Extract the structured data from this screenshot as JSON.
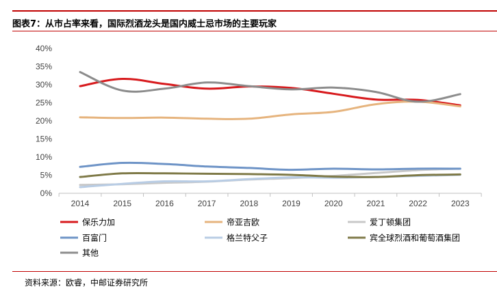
{
  "title": "图表7：从市占率来看，国际烈酒龙头是国内威士忌市场的主要玩家",
  "source": "资料来源：欧睿，中邮证券研究所",
  "chart_data": {
    "type": "line",
    "x": [
      "2014",
      "2015",
      "2016",
      "2017",
      "2018",
      "2019",
      "2020",
      "2021",
      "2022",
      "2023"
    ],
    "ylim": [
      0,
      40
    ],
    "yticks": [
      "0%",
      "5%",
      "10%",
      "15%",
      "20%",
      "25%",
      "30%",
      "35%",
      "40%"
    ],
    "ytick_values": [
      0,
      5,
      10,
      15,
      20,
      25,
      30,
      35,
      40
    ],
    "grid": false,
    "legend_position": "bottom",
    "series": [
      {
        "name": "保乐力加",
        "color": "#d7191c",
        "values": [
          29.6,
          31.6,
          30.2,
          28.9,
          29.5,
          29.1,
          27.5,
          25.9,
          25.8,
          24.3
        ]
      },
      {
        "name": "帝亚吉欧",
        "color": "#e6b47e",
        "values": [
          21.0,
          20.8,
          20.9,
          20.6,
          20.6,
          21.8,
          22.5,
          24.6,
          25.3,
          24.0
        ]
      },
      {
        "name": "爱丁顿集团",
        "color": "#c8c8c8",
        "values": [
          2.3,
          2.5,
          2.9,
          3.2,
          3.8,
          4.2,
          4.8,
          5.6,
          6.4,
          6.8
        ]
      },
      {
        "name": "百富门",
        "color": "#6d93c6",
        "values": [
          7.3,
          8.4,
          8.1,
          7.4,
          7.0,
          6.5,
          6.8,
          6.6,
          6.8,
          6.8
        ]
      },
      {
        "name": "格兰特父子",
        "color": "#b8cce4",
        "values": [
          1.7,
          2.6,
          3.3,
          3.3,
          3.9,
          4.4,
          4.3,
          4.5,
          4.8,
          5.1
        ]
      },
      {
        "name": "宾全球烈酒和葡萄酒集团",
        "color": "#7f7a48",
        "values": [
          4.5,
          5.5,
          5.5,
          5.4,
          5.3,
          5.1,
          4.6,
          4.5,
          5.0,
          5.2
        ]
      },
      {
        "name": "其他",
        "color": "#8c8c8c",
        "values": [
          33.5,
          28.4,
          28.9,
          30.6,
          29.6,
          28.7,
          29.2,
          28.0,
          25.3,
          27.4
        ]
      }
    ]
  }
}
